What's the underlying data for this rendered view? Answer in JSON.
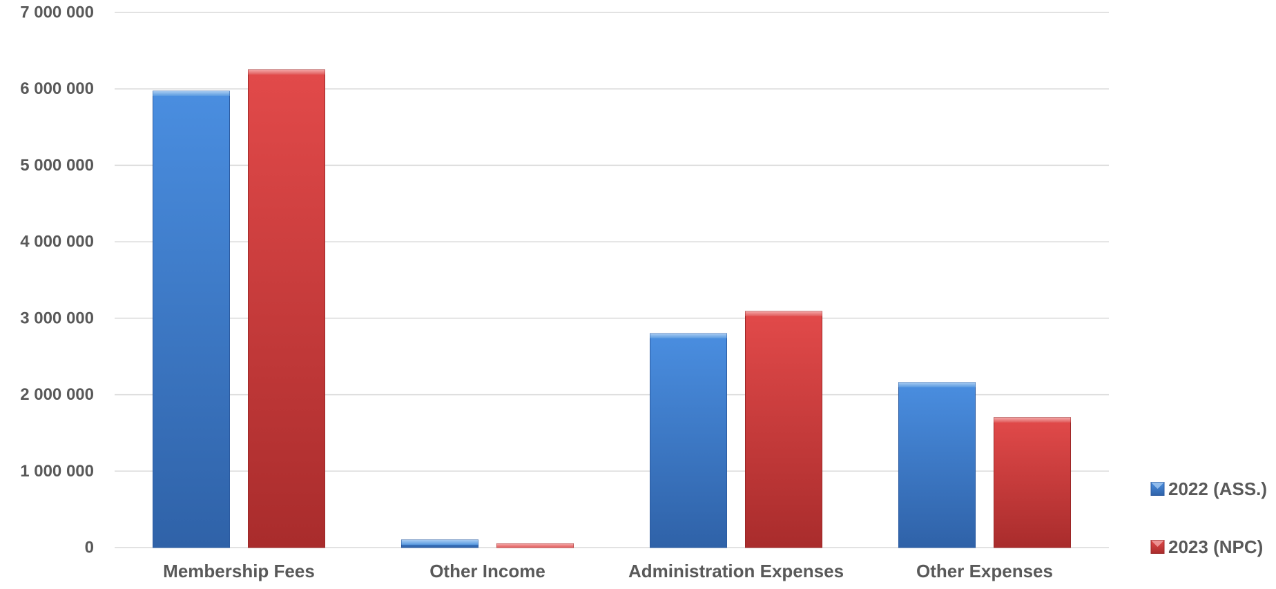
{
  "chart_data": {
    "type": "bar",
    "categories": [
      "Membership Fees",
      "Other Income",
      "Administration Expenses",
      "Other Expenses"
    ],
    "series": [
      {
        "name": "2022 (ASS.)",
        "values": [
          5970000,
          100000,
          2800000,
          2160000
        ],
        "color": "#3a78c8"
      },
      {
        "name": "2023 (NPC)",
        "values": [
          6250000,
          50000,
          3090000,
          1700000
        ],
        "color": "#d23c3c"
      }
    ],
    "title": "",
    "xlabel": "",
    "ylabel": "",
    "ylim": [
      0,
      7000000
    ],
    "yticks": [
      0,
      1000000,
      2000000,
      3000000,
      4000000,
      5000000,
      6000000,
      7000000
    ],
    "ytick_labels": [
      "0",
      "1 000 000",
      "2 000 000",
      "3 000 000",
      "4 000 000",
      "5 000 000",
      "6 000 000",
      "7 000 000"
    ],
    "grid": true,
    "legend_placement": "right"
  }
}
